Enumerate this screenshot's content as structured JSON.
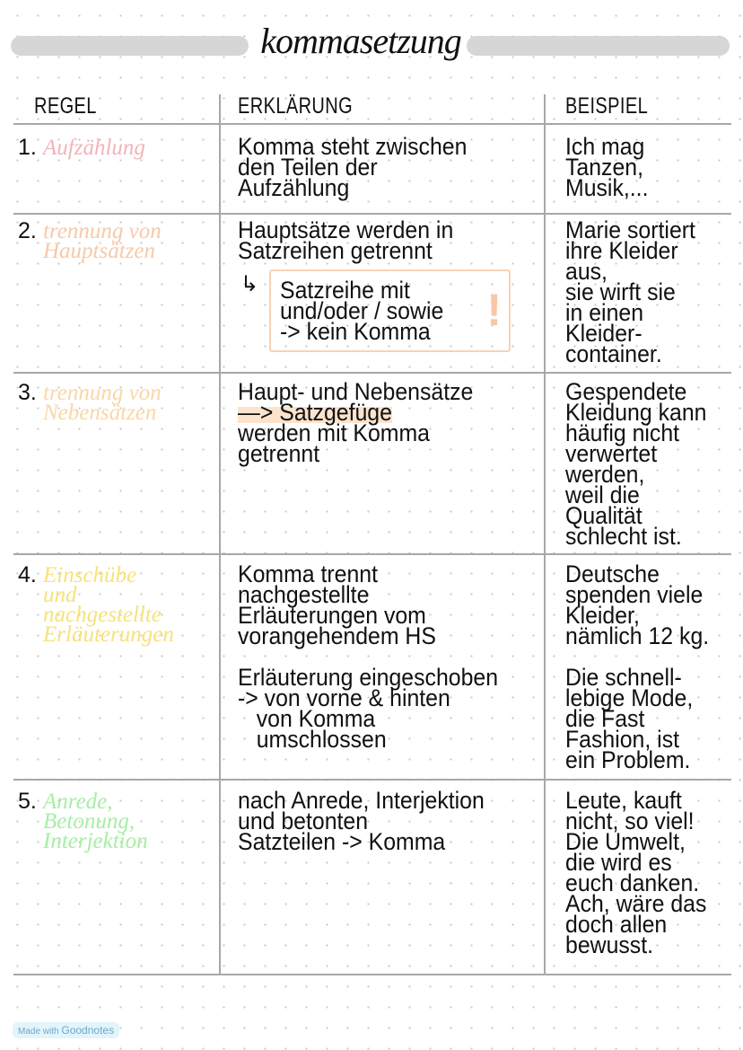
{
  "title": "kommasetzung",
  "headers": {
    "rule": "REGEL",
    "explanation": "ERKLÄRUNG",
    "example": "BEISPIEL"
  },
  "rows": [
    {
      "number": "1.",
      "label": [
        "Aufzählung"
      ],
      "color": "#f3b3b8",
      "explanation": [
        "Komma steht zwischen",
        "den Teilen der",
        "Aufzählung"
      ],
      "example": [
        "Ich mag",
        "Tanzen,",
        "Musik,..."
      ]
    },
    {
      "number": "2.",
      "label": [
        "trennung von",
        "Hauptsätzen"
      ],
      "color": "#f7c9a8",
      "explanation": [
        "Hauptsätze werden in",
        "Satzreihen getrennt"
      ],
      "note": {
        "lines": [
          "Satzreihe mit",
          "und/oder / sowie",
          "-> kein Komma"
        ],
        "mark": "!"
      },
      "example": [
        "Marie sortiert",
        "ihre Kleider",
        "aus,",
        "sie wirft sie",
        "in einen",
        "Kleider-",
        "container."
      ]
    },
    {
      "number": "3.",
      "label": [
        "trennung von",
        "Nebensätzen"
      ],
      "color": "#f9d7a6",
      "explanation": [
        "Haupt- und Nebensätze",
        "—> Satzgefüge",
        "werden mit Komma",
        "getrennt"
      ],
      "example": [
        "Gespendete",
        "Kleidung kann",
        "häufig nicht",
        "verwertet",
        "werden,",
        "weil die",
        "Qualität",
        "schlecht ist."
      ]
    },
    {
      "number": "4.",
      "label": [
        "Einschübe",
        "und",
        "nachgestellte",
        "Erläuterungen"
      ],
      "color": "#f7e27a",
      "explanation": [
        "Komma trennt",
        "nachgestellte",
        "Erläuterungen vom",
        "vorangehendem HS"
      ],
      "explanation2": [
        "Erläuterung eingeschoben",
        "-> von vorne & hinten",
        "   von Komma",
        "   umschlossen"
      ],
      "example": [
        "Deutsche",
        "spenden viele",
        "Kleider,",
        "nämlich 12 kg."
      ],
      "example2": [
        "Die schnell-",
        "lebige Mode,",
        "die Fast",
        "Fashion, ist",
        "ein Problem."
      ]
    },
    {
      "number": "5.",
      "label": [
        "Anrede,",
        "Betonung,",
        "Interjektion"
      ],
      "color": "#a6eea6",
      "explanation": [
        "nach Anrede, Interjektion",
        "und betonten",
        "Satzteilen -> Komma"
      ],
      "example": [
        "Leute, kauft",
        "nicht, so viel!",
        "Die Umwelt,",
        "die wird es",
        "euch danken.",
        "Ach, wäre das",
        "doch allen",
        "bewusst."
      ]
    }
  ],
  "footer": {
    "made_with": "Made with",
    "brand": "Goodnotes"
  }
}
